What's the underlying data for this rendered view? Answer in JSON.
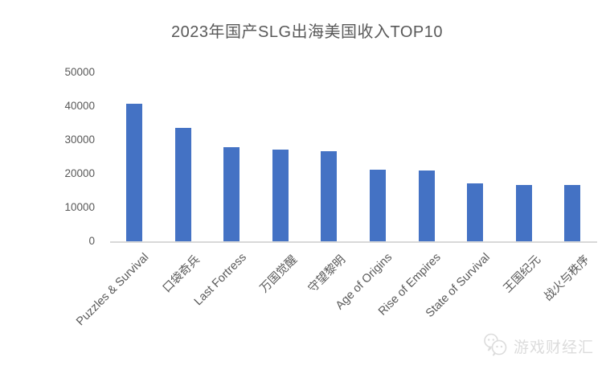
{
  "chart_data": {
    "type": "bar",
    "title": "2023年国产SLG出海美国收入TOP10",
    "categories": [
      "Puzzles & Survival",
      "口袋奇兵",
      "Last Fortress",
      "万国觉醒",
      "守望黎明",
      "Age of Origins",
      "Rise of Empires",
      "State of Survival",
      "王国纪元",
      "战火与秩序"
    ],
    "values": [
      41000,
      33700,
      28200,
      27400,
      27000,
      21500,
      21200,
      17300,
      16900,
      16900
    ],
    "xlabel": "",
    "ylabel": "",
    "ylim": [
      0,
      50000
    ],
    "yticks": [
      0,
      10000,
      20000,
      30000,
      40000,
      50000
    ],
    "grid": false,
    "legend": null,
    "bar_color": "#4472C4"
  },
  "colors": {
    "bar": "#4472C4",
    "text": "#595959",
    "axis_line": "#D9D9D9",
    "watermark": "#DCDCDC",
    "background": "#FFFFFF"
  },
  "watermark": {
    "logo_icon": "chat-bubbles-logo-icon",
    "text": "游戏财经汇"
  }
}
